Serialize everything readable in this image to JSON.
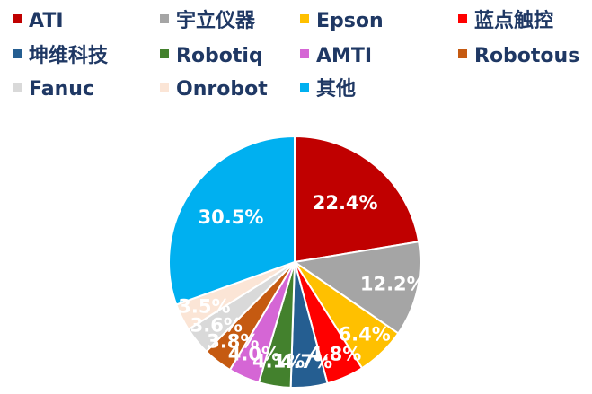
{
  "chart_data": {
    "type": "pie",
    "value_unit": "%",
    "legend_position": "top",
    "categories": [
      "ATI",
      "宇立仪器",
      "Epson",
      "蓝点触控",
      "坤维科技",
      "Robotiq",
      "AMTI",
      "Robotous",
      "Fanuc",
      "Onrobot",
      "其他"
    ],
    "values": [
      22.4,
      12.2,
      6.4,
      4.8,
      4.7,
      4.1,
      4.0,
      3.8,
      3.6,
      3.5,
      30.5
    ],
    "labels": [
      "22.4%",
      "12.2%",
      "6.4%",
      "4.8%",
      "4.7%",
      "4.1%",
      "4.0%",
      "3.8%",
      "3.6%",
      "3.5%",
      "30.5%"
    ],
    "colors": [
      "#c00000",
      "#a5a5a5",
      "#ffc000",
      "#ff0000",
      "#255e91",
      "#43812d",
      "#d566d5",
      "#c55a11",
      "#d9d9d9",
      "#fbe5d6",
      "#00b0f0"
    ],
    "start_angle_deg": 0,
    "direction": "clockwise"
  }
}
